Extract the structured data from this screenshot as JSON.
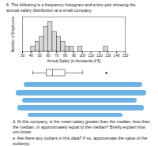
{
  "header": {
    "title": "6. The following is a frequency histogram and a box plot showing the annual salary distribution at a small company."
  },
  "chart_data": [
    {
      "type": "histogram",
      "bins": [
        40,
        45,
        50,
        55,
        60,
        65,
        70,
        75,
        80,
        85,
        90,
        95,
        100,
        105,
        110,
        115,
        120,
        125,
        130
      ],
      "counts": [
        1,
        2,
        3,
        5,
        6,
        4,
        3,
        2,
        1,
        1,
        0,
        1,
        0,
        0,
        0,
        0,
        0,
        1
      ],
      "xlim": [
        30,
        150
      ],
      "xticks": [
        30,
        40,
        50,
        60,
        70,
        80,
        90,
        100,
        110,
        120,
        130,
        140,
        150
      ],
      "ylim": [
        0,
        7
      ],
      "x_label": "Annual Salary (in thousands of $)",
      "y_label": "Number of Employees",
      "tick_labels": "x",
      "color": "#d9d9d9"
    },
    {
      "type": "boxplot",
      "min": 42,
      "q1": 58,
      "median": 65,
      "q3": 80,
      "max": 100,
      "outliers": [
        128
      ],
      "xlim": [
        30,
        150
      ],
      "tick_labels": false
    }
  ],
  "parts": [
    {
      "text": "d. At this company, is the mean salary greater than the median, less than the median, or approximately equal to the median? Briefly explain how you know."
    },
    {
      "text": "e. Are there any outliers in this data? If so, approximate the value of the outlier(s)."
    }
  ]
}
